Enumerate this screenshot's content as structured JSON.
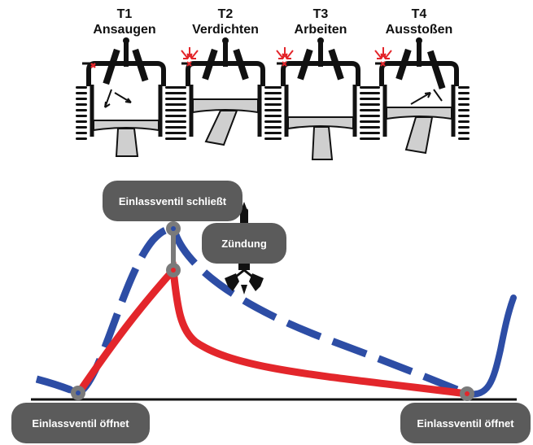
{
  "strokes": [
    {
      "num": "T1",
      "name": "Ansaugen"
    },
    {
      "num": "T2",
      "name": "Verdichten"
    },
    {
      "num": "T3",
      "name": "Arbeiten"
    },
    {
      "num": "T4",
      "name": "Ausstoßen"
    }
  ],
  "callouts": {
    "intake_closes": "Einlassventil schließt",
    "ignition": "Zündung",
    "intake_opens_left": "Einlassventil öffnet",
    "intake_opens_right": "Einlassventil öffnet"
  },
  "colors": {
    "red_curve": "#e3262b",
    "blue_curve": "#2d4da5",
    "pill": "#5b5b5b",
    "engine_fill": "#cfcfcf",
    "marker": "#7a7a7a"
  }
}
